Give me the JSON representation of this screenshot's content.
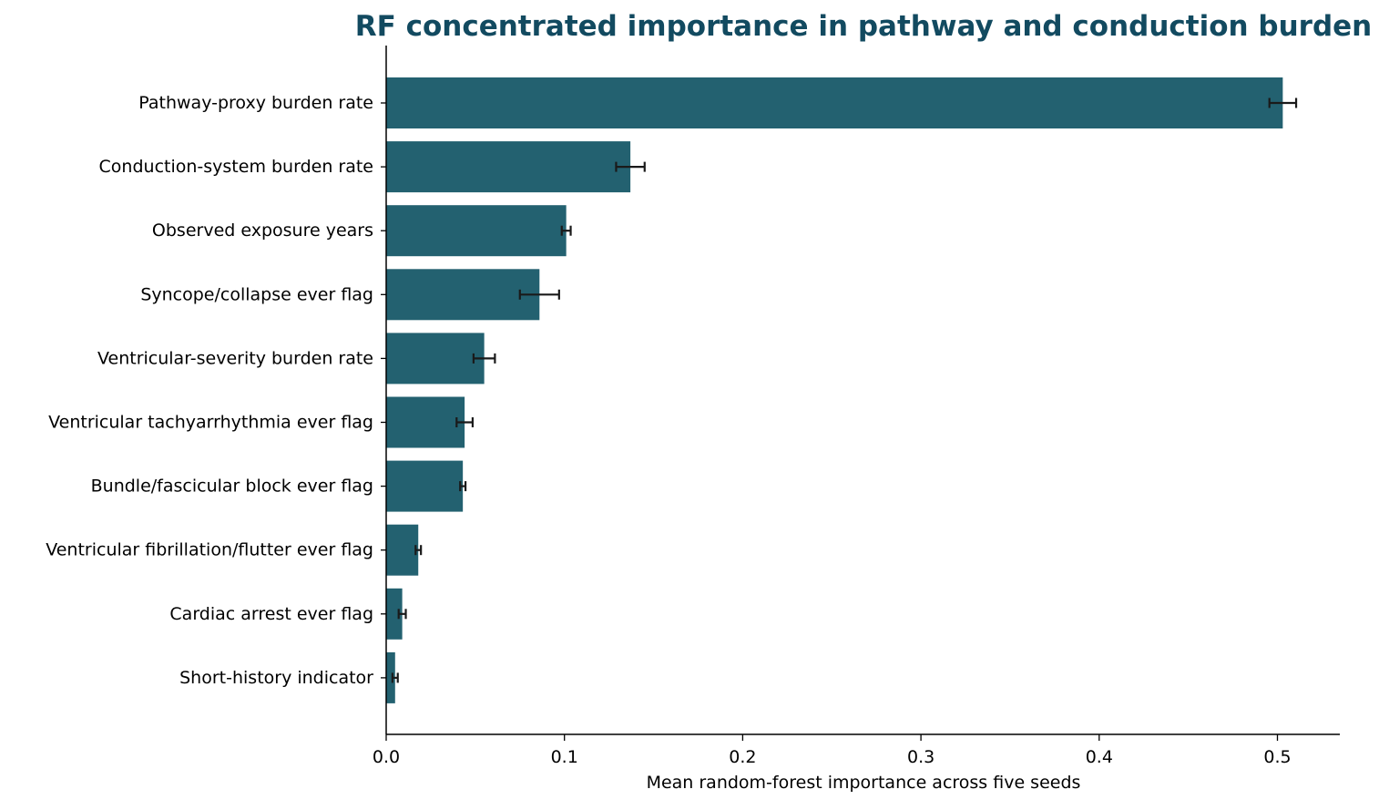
{
  "chart_data": {
    "type": "bar",
    "orientation": "horizontal",
    "title": "RF concentrated importance in pathway and conduction burden",
    "xlabel": "Mean random-forest importance across five seeds",
    "ylabel": "",
    "xlim": [
      0,
      0.535
    ],
    "x_ticks": [
      0.0,
      0.1,
      0.2,
      0.3,
      0.4,
      0.5
    ],
    "x_tick_labels": [
      "0.0",
      "0.1",
      "0.2",
      "0.3",
      "0.4",
      "0.5"
    ],
    "grid": false,
    "legend": "none",
    "categories": [
      "Pathway-proxy burden rate",
      "Conduction-system burden rate",
      "Observed exposure years",
      "Syncope/collapse ever flag",
      "Ventricular-severity burden rate",
      "Ventricular tachyarrhythmia ever flag",
      "Bundle/fascicular block ever flag",
      "Ventricular fibrillation/flutter ever flag",
      "Cardiac arrest ever flag",
      "Short-history indicator"
    ],
    "values": [
      0.503,
      0.137,
      0.101,
      0.086,
      0.055,
      0.044,
      0.043,
      0.018,
      0.009,
      0.005
    ],
    "error": [
      0.0075,
      0.008,
      0.0025,
      0.011,
      0.006,
      0.0045,
      0.0015,
      0.0015,
      0.002,
      0.0015
    ],
    "colors": {
      "bar": "#236170",
      "errorbar": "#1a1a1a",
      "title": "#124a60",
      "axis": "#000000"
    }
  }
}
